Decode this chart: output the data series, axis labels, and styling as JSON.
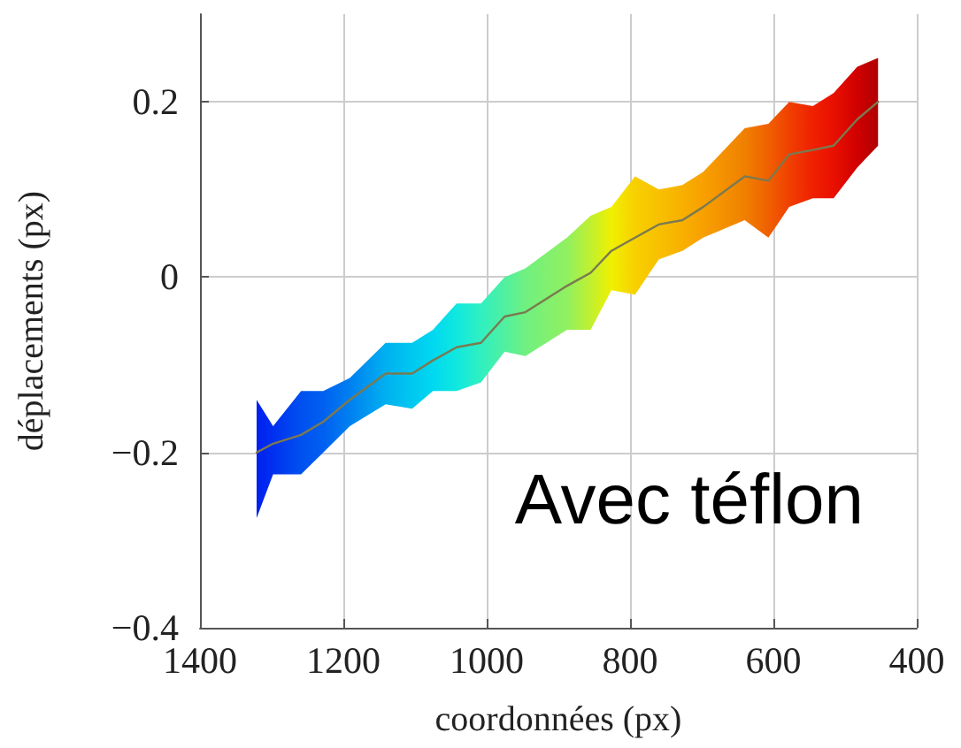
{
  "chart_data": {
    "type": "line",
    "marker": "none",
    "xlabel": "coordonnées (px)",
    "ylabel": "déplacements (px)",
    "annotations": [
      "Avec téflon"
    ],
    "x": [
      1321,
      1298,
      1259,
      1228,
      1191,
      1141,
      1104,
      1075,
      1042,
      1008,
      975,
      946,
      888,
      855,
      826,
      793,
      760,
      727,
      698,
      640,
      607,
      578,
      545,
      516,
      483,
      454
    ],
    "series": [
      {
        "color": "#7a7a50",
        "values": [
          -0.2,
          -0.19,
          -0.18,
          -0.165,
          -0.14,
          -0.11,
          -0.11,
          -0.095,
          -0.08,
          -0.075,
          -0.045,
          -0.04,
          -0.01,
          0.005,
          0.03,
          0.045,
          0.06,
          0.065,
          0.08,
          0.115,
          0.11,
          0.14,
          0.145,
          0.15,
          0.18,
          0.2
        ],
        "upper": [
          -0.14,
          -0.17,
          -0.13,
          -0.13,
          -0.115,
          -0.075,
          -0.075,
          -0.06,
          -0.03,
          -0.03,
          0.0,
          0.01,
          0.045,
          0.07,
          0.08,
          0.115,
          0.1,
          0.105,
          0.12,
          0.17,
          0.175,
          0.2,
          0.195,
          0.21,
          0.24,
          0.25
        ],
        "lower": [
          -0.275,
          -0.225,
          -0.225,
          -0.2,
          -0.17,
          -0.145,
          -0.15,
          -0.13,
          -0.13,
          -0.12,
          -0.085,
          -0.09,
          -0.06,
          -0.06,
          -0.015,
          -0.02,
          0.02,
          0.03,
          0.045,
          0.065,
          0.045,
          0.08,
          0.09,
          0.09,
          0.125,
          0.15
        ],
        "colors": [
          "#0020f0",
          "#0030f0",
          "#0050f0",
          "#0060f0",
          "#0080f0",
          "#00b0f0",
          "#00c8f0",
          "#00d8f0",
          "#10e8e0",
          "#30f0c0",
          "#50f0a0",
          "#70f080",
          "#90f060",
          "#c0f030",
          "#f0f000",
          "#f8d000",
          "#f8c000",
          "#f8b000",
          "#f8a000",
          "#f08000",
          "#f06000",
          "#f04000",
          "#f02000",
          "#e81000",
          "#d00000",
          "#b00000"
        ]
      }
    ],
    "xlim": [
      1400,
      400
    ],
    "xticks": [
      1400,
      1200,
      1000,
      800,
      600,
      400
    ],
    "ylim": [
      -0.4,
      0.3
    ],
    "yticks": [
      {
        "value": -0.4,
        "label": "−0.4"
      },
      {
        "value": -0.2,
        "label": "−0.2"
      },
      0,
      {
        "value": 0.2,
        "label": "0.2"
      }
    ],
    "grid": true
  }
}
